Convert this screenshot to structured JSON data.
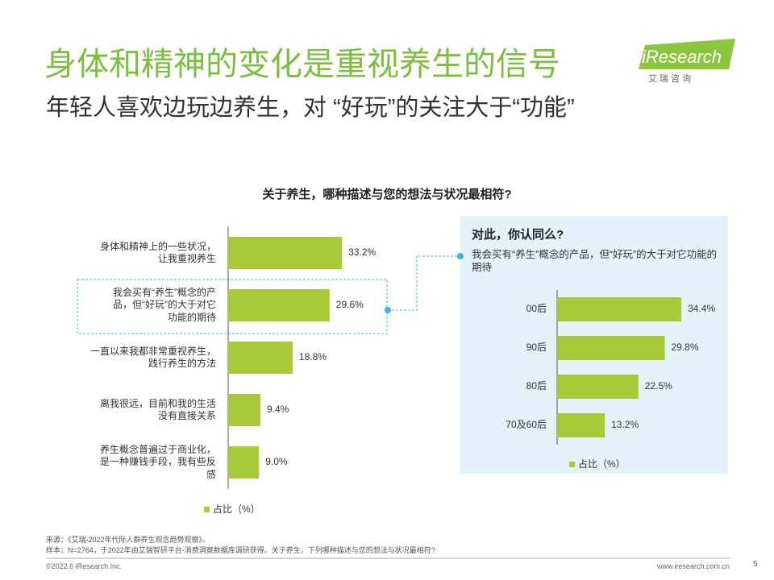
{
  "header": {
    "title": "身体和精神的变化是重视养生的信号",
    "subtitle": "年轻人喜欢边玩边养生，对 “好玩”的关注大于“功能”"
  },
  "logo": {
    "name": "iResearch",
    "tagline": "艾 瑞 咨 询"
  },
  "chart_data": [
    {
      "type": "bar",
      "orientation": "horizontal",
      "title": "关于养生，哪种描述与您的想法与状况最相符?",
      "categories": [
        "身体和精神上的一些状况，\n让我重视养生",
        "我会买有“养生”概念的产\n品，但“好玩”的大于对它\n功能的期待",
        "一直以来我都非常重视养生，\n践行养生的方法",
        "离我很远，目前和我的生活\n没有直接关系",
        "养生概念普遍过于商业化，\n是一种赚钱手段，我有些反\n感"
      ],
      "series": [
        {
          "name": "占比（%）",
          "color": "#a9c938",
          "values": [
            33.2,
            29.6,
            18.8,
            9.4,
            9.0
          ],
          "value_labels": [
            "33.2%",
            "29.6%",
            "18.8%",
            "9.4%",
            "9.0%"
          ]
        }
      ]
    },
    {
      "type": "bar",
      "orientation": "horizontal",
      "title": "对此，你认同么?",
      "subtitle": "我会买有“养生”概念的产品，但“好玩”的大于对它功能的期待",
      "categories": [
        "00后",
        "90后",
        "80后",
        "70及60后"
      ],
      "series": [
        {
          "name": "占比（%）",
          "color": "#a9c938",
          "values": [
            34.4,
            29.8,
            22.5,
            13.2
          ],
          "value_labels": [
            "34.4%",
            "29.8%",
            "22.5%",
            "13.2%"
          ]
        }
      ]
    }
  ],
  "footer": {
    "source": "来源：《艾瑞-2022年代际人群养生观念趋势观察》。",
    "sample": "样本：N=2764，于2022年由艾瑞智研平台-消费洞察数据库调研获得。关于养生，下列哪种描述与您的想法与状况最相符?",
    "copyright": "©2022.6 iResearch Inc.",
    "website": "www.iresearch.com.cn",
    "page": "5"
  }
}
